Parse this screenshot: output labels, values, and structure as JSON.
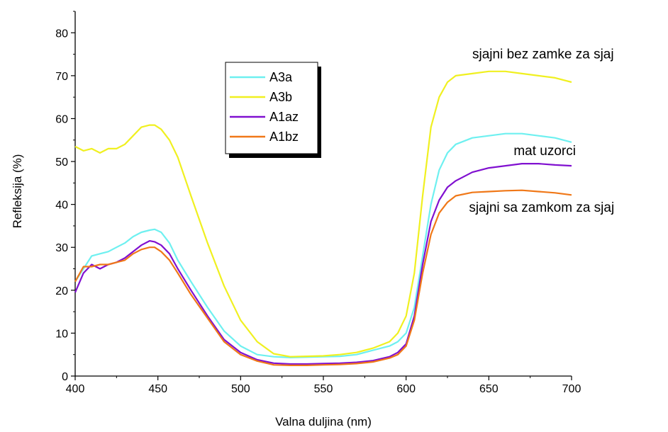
{
  "chart_data": {
    "type": "line",
    "title": "",
    "xlabel": "Valna duljina (nm)",
    "ylabel": "Refleksija (%)",
    "xlim": [
      400,
      700
    ],
    "ylim": [
      0,
      85
    ],
    "xticks": [
      400,
      450,
      500,
      550,
      600,
      650,
      700
    ],
    "yticks": [
      0,
      10,
      20,
      30,
      40,
      50,
      60,
      70,
      80
    ],
    "grid": false,
    "legend_position": "upper-left-center",
    "series": [
      {
        "name": "A3a",
        "color": "#6EF0F0",
        "x": [
          400,
          405,
          410,
          415,
          420,
          425,
          430,
          435,
          440,
          445,
          448,
          452,
          457,
          462,
          470,
          480,
          490,
          500,
          510,
          520,
          530,
          540,
          550,
          560,
          570,
          580,
          590,
          595,
          600,
          605,
          610,
          615,
          620,
          625,
          630,
          640,
          650,
          660,
          670,
          680,
          690,
          700
        ],
        "y": [
          22,
          25,
          28,
          28.5,
          29,
          30,
          31,
          32.5,
          33.5,
          34,
          34.2,
          33.5,
          31,
          27,
          22,
          16,
          10.5,
          7,
          5,
          4.5,
          4.3,
          4.4,
          4.5,
          4.6,
          5,
          6,
          7,
          8,
          10,
          16,
          28,
          40,
          48,
          52,
          54,
          55.5,
          56,
          56.5,
          56.5,
          56,
          55.5,
          54.5
        ]
      },
      {
        "name": "A3b",
        "color": "#F0F020",
        "x": [
          400,
          405,
          410,
          415,
          420,
          425,
          430,
          435,
          440,
          445,
          448,
          452,
          457,
          462,
          470,
          480,
          490,
          500,
          510,
          520,
          530,
          540,
          550,
          560,
          570,
          580,
          590,
          595,
          600,
          605,
          610,
          615,
          620,
          625,
          630,
          640,
          650,
          660,
          670,
          680,
          690,
          700
        ],
        "y": [
          53.5,
          52.5,
          53,
          52,
          53,
          53,
          54,
          56,
          58,
          58.5,
          58.5,
          57.5,
          55,
          51,
          42,
          31,
          21,
          13,
          8,
          5.2,
          4.5,
          4.6,
          4.7,
          5,
          5.5,
          6.5,
          8,
          10,
          14,
          24,
          42,
          58,
          65,
          68.5,
          70,
          70.5,
          71,
          71,
          70.5,
          70,
          69.5,
          68.5
        ]
      },
      {
        "name": "A1az",
        "color": "#8010D0",
        "x": [
          400,
          405,
          410,
          415,
          420,
          425,
          430,
          435,
          440,
          445,
          448,
          452,
          457,
          462,
          470,
          480,
          490,
          500,
          510,
          520,
          530,
          540,
          550,
          560,
          570,
          580,
          590,
          595,
          600,
          605,
          610,
          615,
          620,
          625,
          630,
          640,
          650,
          660,
          670,
          680,
          690,
          700
        ],
        "y": [
          19.5,
          24,
          26,
          25,
          26,
          26.5,
          27.5,
          29,
          30.5,
          31.5,
          31.3,
          30.5,
          28.5,
          25,
          20,
          14,
          8.5,
          5.5,
          3.8,
          3,
          2.8,
          2.8,
          2.9,
          3,
          3.2,
          3.6,
          4.5,
          5.5,
          7.5,
          14,
          26,
          36,
          41,
          44,
          45.5,
          47.5,
          48.5,
          49,
          49.5,
          49.5,
          49.2,
          49
        ]
      },
      {
        "name": "A1bz",
        "color": "#F07818",
        "x": [
          400,
          405,
          410,
          415,
          420,
          425,
          430,
          435,
          440,
          445,
          448,
          452,
          457,
          462,
          470,
          480,
          490,
          500,
          510,
          520,
          530,
          540,
          550,
          560,
          570,
          580,
          590,
          595,
          600,
          605,
          610,
          615,
          620,
          625,
          630,
          640,
          650,
          660,
          670,
          680,
          690,
          700
        ],
        "y": [
          22,
          25.5,
          25.5,
          26,
          26,
          26.5,
          27,
          28.5,
          29.5,
          30,
          30,
          29,
          27,
          24,
          19,
          13.5,
          8,
          5,
          3.5,
          2.6,
          2.5,
          2.5,
          2.6,
          2.7,
          2.9,
          3.3,
          4.2,
          5,
          7,
          13,
          24,
          33,
          38,
          40.5,
          42,
          42.8,
          43,
          43.2,
          43.3,
          43,
          42.7,
          42.2
        ]
      }
    ],
    "annotations": [
      {
        "text": "sjajni bez zamke za sjaj",
        "x": 640,
        "y": 74
      },
      {
        "text": "mat uzorci",
        "x": 665,
        "y": 51.5
      },
      {
        "text": "sjajni sa zamkom za sjaj",
        "x": 638,
        "y": 38.3
      }
    ]
  }
}
